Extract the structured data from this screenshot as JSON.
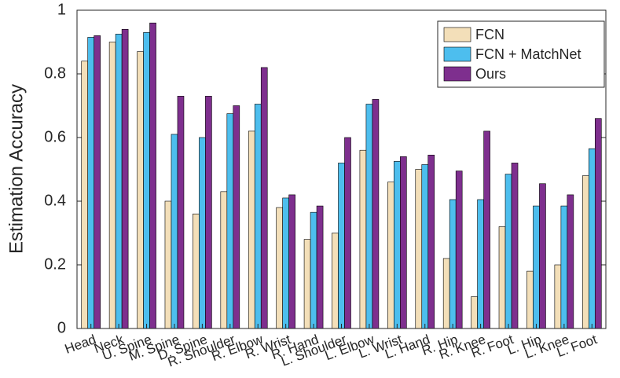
{
  "chart_data": {
    "type": "bar",
    "y_label": "Estimation Accuracy",
    "categories": [
      "Head",
      "Neck",
      "U. Spine",
      "M. Spine",
      "D. Spine",
      "R. Shoulder",
      "R. Elbow",
      "R. Wrist",
      "R. Hand",
      "L. Shoulder",
      "L. Elbow",
      "L. Wrist",
      "L. Hand",
      "R. Hip",
      "R. Knee",
      "R. Foot",
      "L. Hip",
      "L. Knee",
      "L. Foot"
    ],
    "series": [
      {
        "name": "FCN",
        "color": "#f3dfb9",
        "values": [
          0.84,
          0.9,
          0.87,
          0.4,
          0.36,
          0.43,
          0.62,
          0.38,
          0.28,
          0.3,
          0.56,
          0.46,
          0.5,
          0.22,
          0.1,
          0.32,
          0.18,
          0.2,
          0.48
        ]
      },
      {
        "name": "FCN + MatchNet",
        "color": "#4dbeee",
        "values": [
          0.915,
          0.925,
          0.93,
          0.61,
          0.6,
          0.675,
          0.705,
          0.41,
          0.365,
          0.52,
          0.705,
          0.525,
          0.515,
          0.405,
          0.405,
          0.485,
          0.385,
          0.385,
          0.565
        ]
      },
      {
        "name": "Ours",
        "color": "#7e2f8e",
        "values": [
          0.92,
          0.94,
          0.96,
          0.73,
          0.73,
          0.7,
          0.82,
          0.42,
          0.385,
          0.6,
          0.72,
          0.54,
          0.545,
          0.495,
          0.62,
          0.52,
          0.455,
          0.42,
          0.66
        ]
      }
    ],
    "ylim": [
      0,
      1
    ],
    "yticks": [
      0,
      0.2,
      0.4,
      0.6,
      0.8,
      1
    ],
    "legend": "upper right"
  }
}
